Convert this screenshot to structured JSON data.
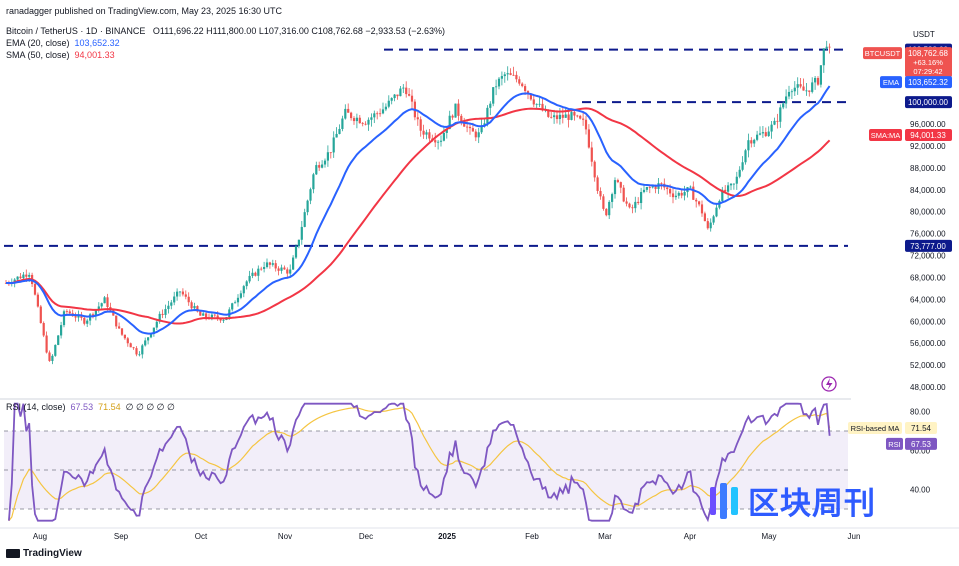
{
  "header": {
    "author": "ranadagger published on TradingView.com, May 23, 2025 16:30 UTC",
    "symbol": "Bitcoin / TetherUS · 1D · BINANCE",
    "ohlc": "O111,696.22  H111,800.00  L107,316.00  C108,762.68  −2,933.53 (−2.63%)",
    "ema_label": "EMA (20, close)",
    "ema_value": "103,652.32",
    "sma_label": "SMA (50, close)",
    "sma_value": "94,001.33"
  },
  "rsi_header": {
    "label": "RSI (14, close)",
    "rsi_value": "67.53",
    "ma_value": "71.54",
    "extras": "∅  ∅  ∅  ∅  ∅"
  },
  "currency": "USDT",
  "branding": {
    "tradingview": "TradingView",
    "watermark": "区块周刊"
  },
  "colors": {
    "up": "#26a69a",
    "down": "#ef5350",
    "ema": "#2962ff",
    "sma": "#f23645",
    "rsi": "#7e57c2",
    "rsi_ma": "#f5c542",
    "levels": "#0d1a8c"
  },
  "chart_data": {
    "type": "candlestick",
    "ylim": [
      46000,
      115000
    ],
    "ytick_labels": [
      "48,000.00",
      "52,000.00",
      "56,000.00",
      "60,000.00",
      "64,000.00",
      "68,000.00",
      "72,000.00",
      "76,000.00",
      "80,000.00",
      "84,000.00",
      "88,000.00",
      "92,000.00",
      "96,000.00"
    ],
    "x_labels": [
      "Aug",
      "Sep",
      "Oct",
      "Nov",
      "Dec",
      "2025",
      "Feb",
      "Mar",
      "Apr",
      "May",
      "Jun"
    ],
    "horizontal_levels": [
      {
        "value": 109588,
        "label": "109,588.00"
      },
      {
        "value": 100000,
        "label": "100,000.00"
      },
      {
        "value": 73777,
        "label": "73,777.00"
      }
    ],
    "price_tags": [
      {
        "label": "BTCUSDT",
        "value": "108,762.68",
        "change": "+63.16%",
        "countdown": "07:29:42"
      },
      {
        "label": "EMA",
        "value": "103,652.32"
      },
      {
        "label": "SMA:MA",
        "value": "94,001.33"
      }
    ],
    "ema20_last": 103652.32,
    "sma50_last": 94001.33,
    "rsi": {
      "ylim": [
        0,
        100
      ],
      "tick_labels": [
        "80.00",
        "60.00",
        "40.00"
      ],
      "upper": 70,
      "middle": 50,
      "lower": 30,
      "value": 67.53,
      "ma_value": 71.54,
      "tag_labels": [
        "RSI-based MA",
        "RSI"
      ]
    }
  }
}
